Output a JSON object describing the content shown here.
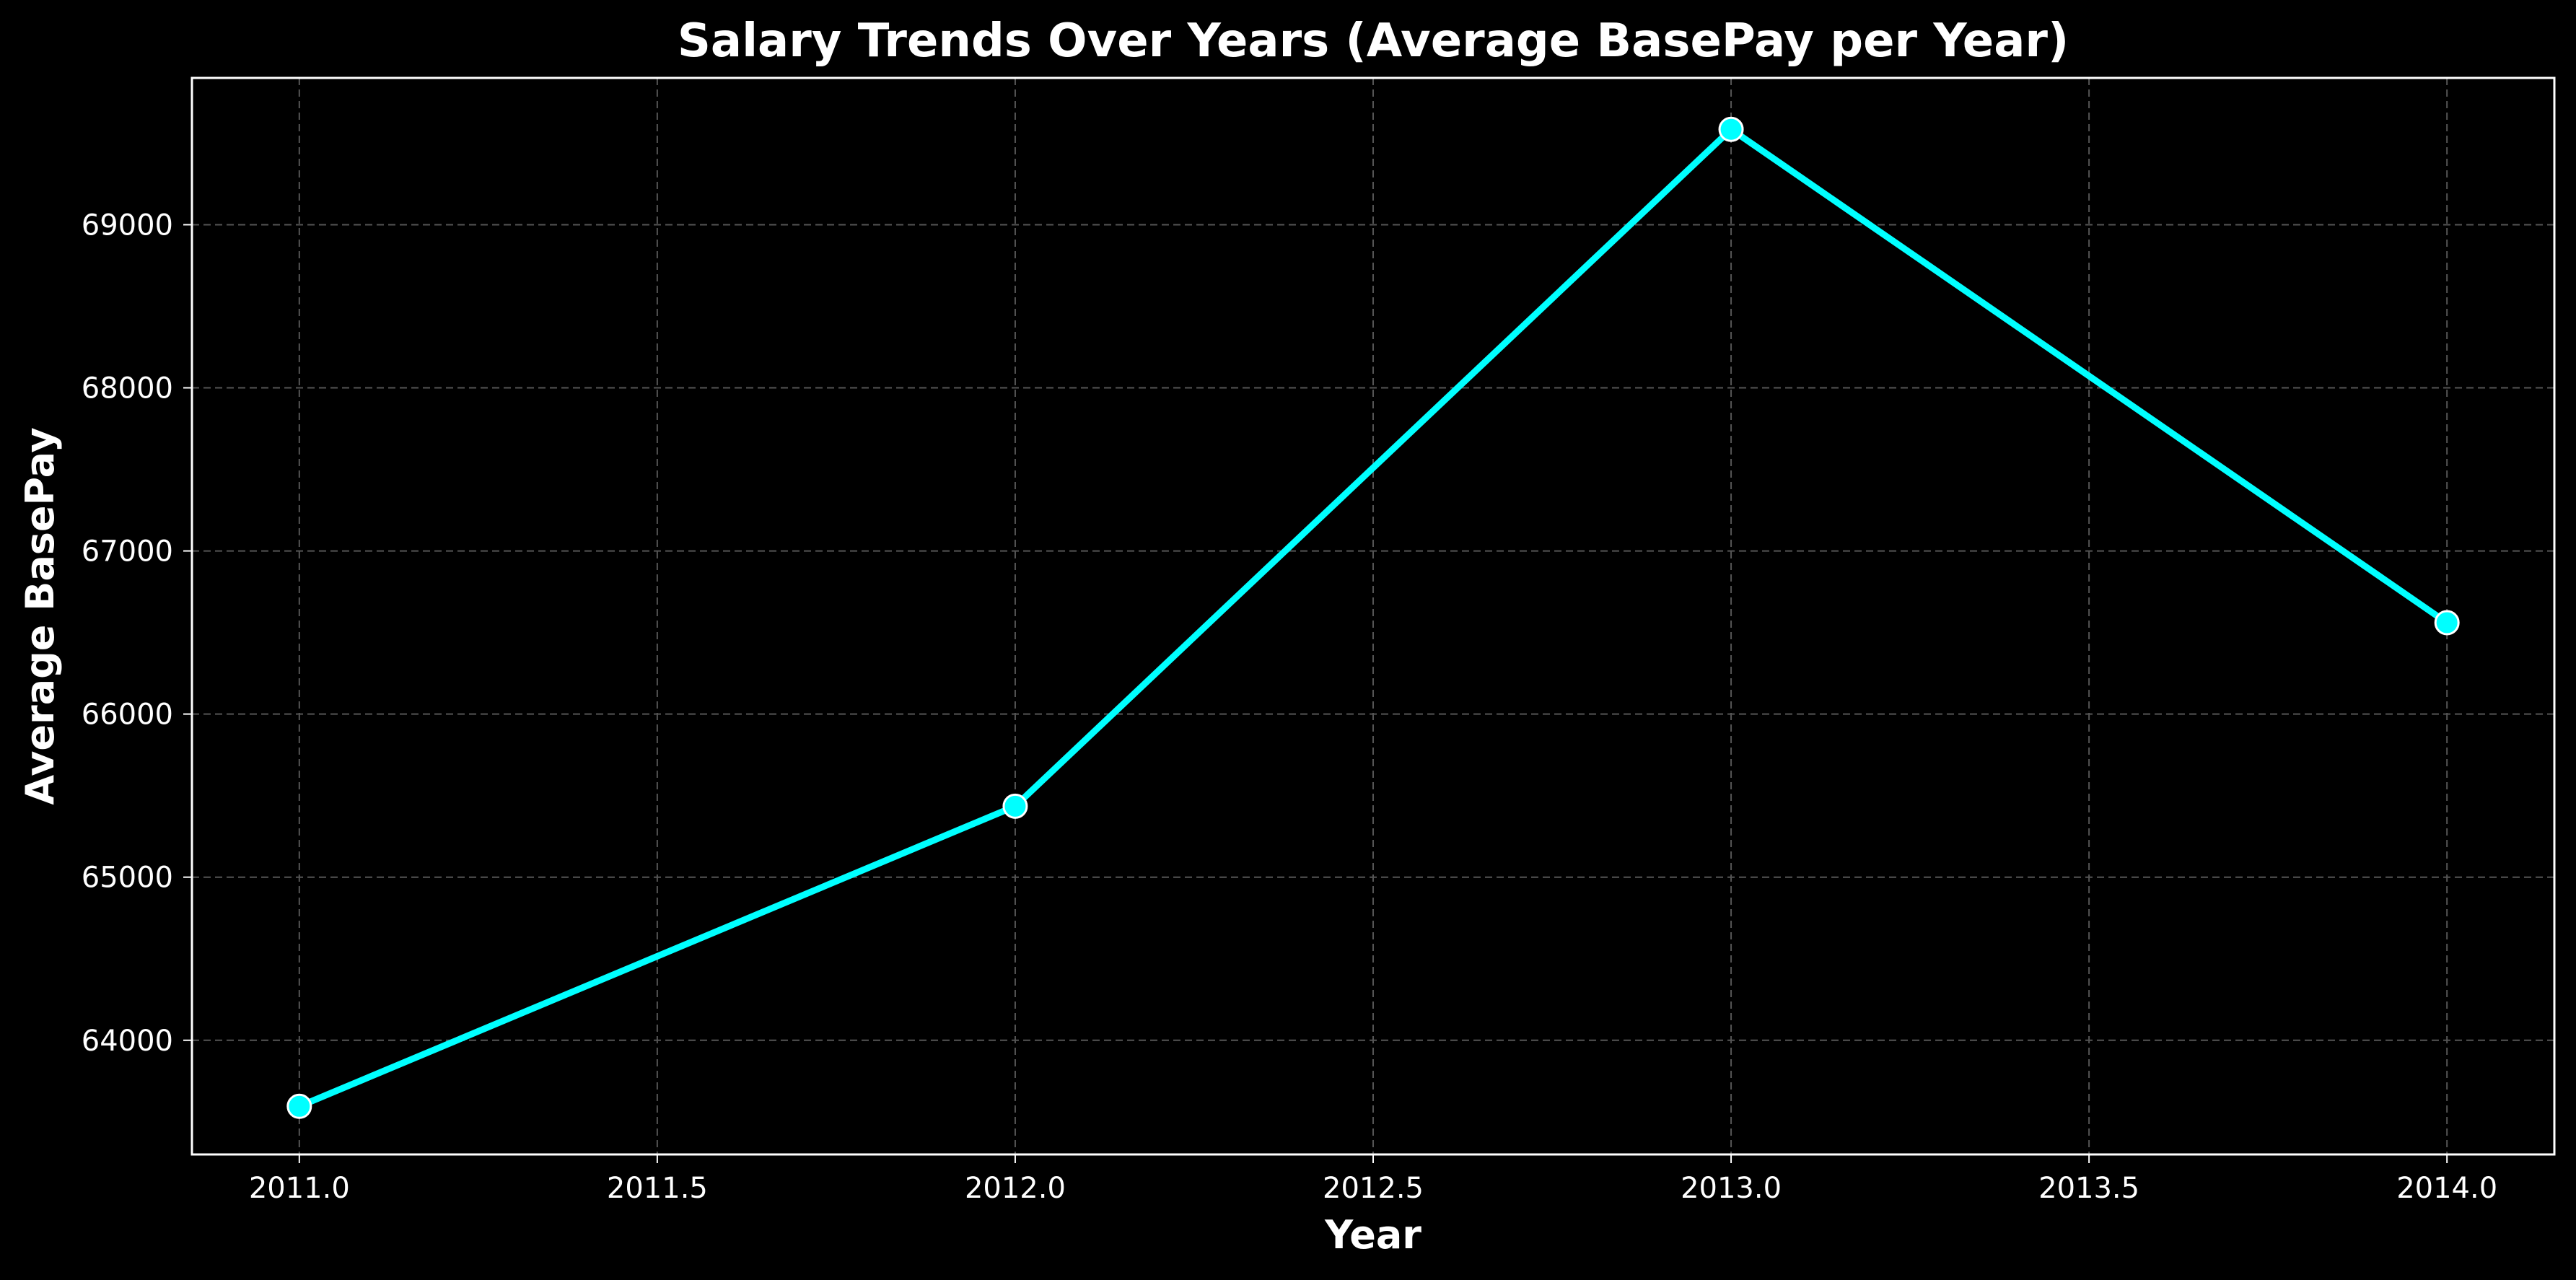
{
  "chart_data": {
    "type": "line",
    "title": "Salary Trends Over Years (Average BasePay per Year)",
    "xlabel": "Year",
    "ylabel": "Average BasePay",
    "x_ticks": [
      "2011.0",
      "2011.5",
      "2012.0",
      "2012.5",
      "2013.0",
      "2013.5",
      "2014.0"
    ],
    "y_ticks": [
      "64000",
      "65000",
      "66000",
      "67000",
      "68000",
      "69000"
    ],
    "xlim": [
      2010.85,
      2014.15
    ],
    "ylim": [
      63300,
      69900
    ],
    "grid": true,
    "series": [
      {
        "x": [
          2011,
          2012,
          2013,
          2014
        ],
        "values": [
          63595,
          65435,
          69585,
          66560
        ],
        "color": "#00ffff",
        "marker_edge_color": "#ffffff"
      }
    ],
    "background_color": "#000000",
    "grid_color": "#555555",
    "text_color": "#ffffff"
  }
}
